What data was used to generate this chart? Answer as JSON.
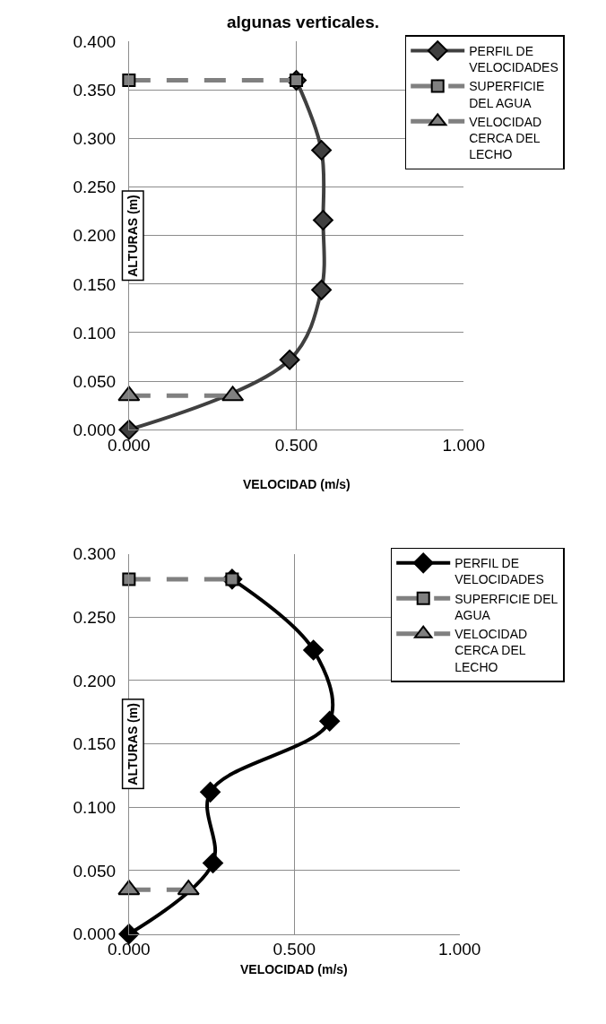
{
  "chart_data": [
    {
      "type": "line",
      "title": "algunas verticales.",
      "xlabel": "VELOCIDAD (m/s)",
      "ylabel": "ALTURAS (m)",
      "xlim": [
        0,
        1
      ],
      "xticks": [
        {
          "value": 0,
          "label": "0.000"
        },
        {
          "value": 0.5,
          "label": "0.500"
        },
        {
          "value": 1,
          "label": "1.000"
        }
      ],
      "ylim": [
        0,
        0.4
      ],
      "yticks": [
        {
          "value": 0,
          "label": "0.000"
        },
        {
          "value": 0.05,
          "label": "0.050"
        },
        {
          "value": 0.1,
          "label": "0.100"
        },
        {
          "value": 0.15,
          "label": "0.150"
        },
        {
          "value": 0.2,
          "label": "0.200"
        },
        {
          "value": 0.25,
          "label": "0.250"
        },
        {
          "value": 0.3,
          "label": "0.300"
        },
        {
          "value": 0.35,
          "label": "0.350"
        },
        {
          "value": 0.4,
          "label": "0.400"
        }
      ],
      "grid": true,
      "legend": "top right",
      "series": [
        {
          "name": "PERFIL DE VELOCIDADES",
          "color": "#404040",
          "marker": "diamond",
          "line_style": "solid",
          "x": [
            0,
            0.48,
            0.575,
            0.58,
            0.575,
            0.5
          ],
          "values": [
            0,
            0.072,
            0.144,
            0.216,
            0.288,
            0.36
          ]
        },
        {
          "name": "SUPERFICIE DEL AGUA",
          "color": "#808080",
          "marker": "square",
          "line_style": "dashed",
          "x": [
            0,
            0.5
          ],
          "values": [
            0.36,
            0.36
          ]
        },
        {
          "name": "VELOCIDAD CERCA DEL LECHO",
          "color": "#808080",
          "marker": "triangle",
          "line_style": "dashed",
          "x": [
            0,
            0.31
          ],
          "values": [
            0.035,
            0.035
          ]
        }
      ]
    },
    {
      "type": "line",
      "xlabel": "VELOCIDAD (m/s)",
      "ylabel": "ALTURAS (m)",
      "xlim": [
        0,
        1
      ],
      "xticks": [
        {
          "value": 0,
          "label": "0.000"
        },
        {
          "value": 0.5,
          "label": "0.500"
        },
        {
          "value": 1,
          "label": "1.000"
        }
      ],
      "ylim": [
        0,
        0.3
      ],
      "yticks": [
        {
          "value": 0,
          "label": "0.000"
        },
        {
          "value": 0.05,
          "label": "0.050"
        },
        {
          "value": 0.1,
          "label": "0.100"
        },
        {
          "value": 0.15,
          "label": "0.150"
        },
        {
          "value": 0.2,
          "label": "0.200"
        },
        {
          "value": 0.25,
          "label": "0.250"
        },
        {
          "value": 0.3,
          "label": "0.300"
        }
      ],
      "grid": true,
      "legend": "top right",
      "series": [
        {
          "name": "PERFIL DE VELOCIDADES",
          "color": "#000000",
          "marker": "diamond",
          "line_style": "solid",
          "x": [
            0,
            0.254,
            0.246,
            0.607,
            0.558,
            0.312
          ],
          "values": [
            0,
            0.056,
            0.112,
            0.168,
            0.224,
            0.28
          ]
        },
        {
          "name": "SUPERFICIE DEL AGUA",
          "color": "#808080",
          "marker": "square",
          "line_style": "dashed",
          "x": [
            0,
            0.312
          ],
          "values": [
            0.28,
            0.28
          ]
        },
        {
          "name": "VELOCIDAD CERCA DEL LECHO",
          "color": "#808080",
          "marker": "triangle",
          "line_style": "dashed",
          "x": [
            0,
            0.18
          ],
          "values": [
            0.035,
            0.035
          ]
        }
      ]
    }
  ]
}
